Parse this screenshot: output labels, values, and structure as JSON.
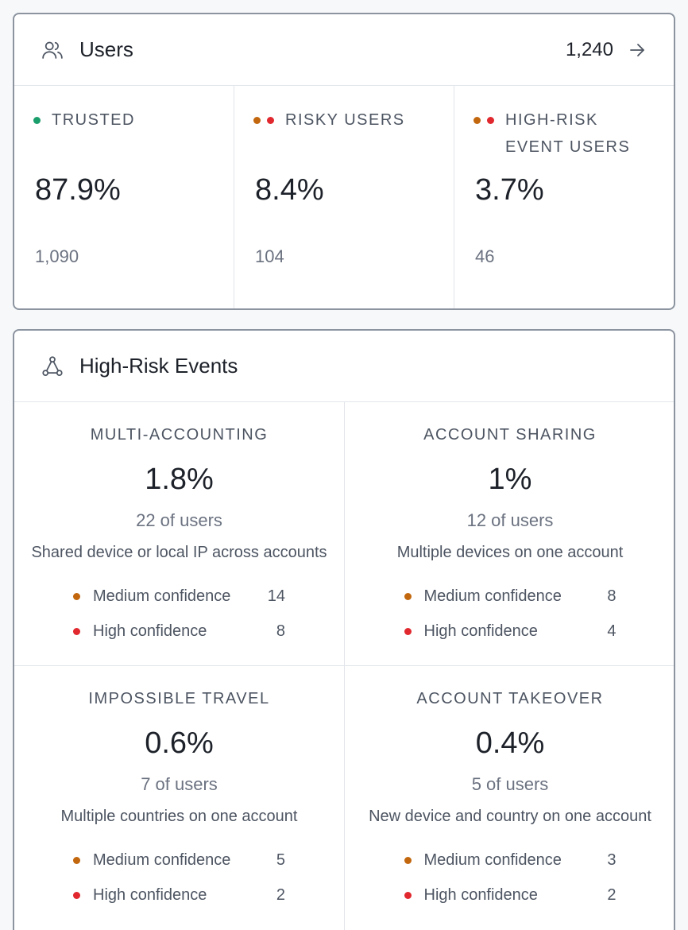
{
  "colors": {
    "trusted": "#1a9e6b",
    "medium": "#c2670e",
    "high": "#e0282e"
  },
  "users": {
    "title": "Users",
    "icon": "users-icon",
    "total": "1,240",
    "arrow_icon": "arrow-right-icon",
    "stats": [
      {
        "label": "TRUSTED",
        "label_line2": "",
        "percent": "87.9%",
        "count": "1,090",
        "dots": [
          "trusted"
        ]
      },
      {
        "label": "RISKY USERS",
        "label_line2": "",
        "percent": "8.4%",
        "count": "104",
        "dots": [
          "medium",
          "high"
        ]
      },
      {
        "label": "HIGH-RISK",
        "label_line2": "EVENT USERS",
        "percent": "3.7%",
        "count": "46",
        "dots": [
          "medium",
          "high"
        ]
      }
    ]
  },
  "events": {
    "title": "High-Risk Events",
    "icon": "network-nodes-icon",
    "cells": [
      {
        "title": "MULTI-ACCOUNTING",
        "percent": "1.8%",
        "users": "22 of users",
        "description": "Shared device or local IP across accounts",
        "medium_label": "Medium confidence",
        "medium_value": "14",
        "high_label": "High confidence",
        "high_value": "8"
      },
      {
        "title": "ACCOUNT SHARING",
        "percent": "1%",
        "users": "12 of users",
        "description": "Multiple devices on one account",
        "medium_label": "Medium confidence",
        "medium_value": "8",
        "high_label": "High confidence",
        "high_value": "4"
      },
      {
        "title": "IMPOSSIBLE TRAVEL",
        "percent": "0.6%",
        "users": "7 of users",
        "description": "Multiple countries on one account",
        "medium_label": "Medium confidence",
        "medium_value": "5",
        "high_label": "High confidence",
        "high_value": "2"
      },
      {
        "title": "ACCOUNT TAKEOVER",
        "percent": "0.4%",
        "users": "5 of users",
        "description": "New device and country on one account",
        "medium_label": "Medium confidence",
        "medium_value": "3",
        "high_label": "High confidence",
        "high_value": "2"
      }
    ]
  }
}
